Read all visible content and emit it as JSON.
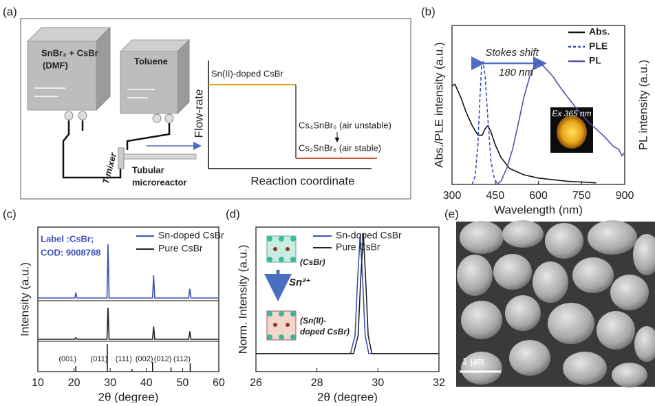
{
  "panel_labels": [
    "(a)",
    "(b)",
    "(c)",
    "(d)",
    "(e)"
  ],
  "diagram": {
    "reservoir_1": [
      "SnBr₂ + CsBr",
      "(DMF)"
    ],
    "reservoir_2": "Toluene",
    "mixer": "T-mixer",
    "reactor": [
      "Tubular",
      "microreactor"
    ],
    "y_axis": "Flow-rate",
    "x_axis": "Reaction coordinate",
    "stages": [
      "Sn(II)-doped CsBr",
      "Cs₄SnBr₆ (air unstable)",
      "Cs₂SnBr₆ (air stable)"
    ]
  },
  "chart_data": [
    {
      "type": "line",
      "xlabel": "Wavelength (nm)",
      "ylabel": "Abs./PLE intensity (a.u.)",
      "y2label": "PL intensity (a.u.)",
      "xlim": [
        300,
        900
      ],
      "xticks": [
        300,
        450,
        600,
        750,
        900
      ],
      "ylim": [
        0,
        1
      ],
      "y2lim": [
        0,
        1
      ],
      "legend": "upper right",
      "annotations": [
        "Stokes shift",
        "180 nm"
      ],
      "inset_label": "Ex 365 nm",
      "series": [
        {
          "name": "Abs.",
          "color": "#111111",
          "line_style": "solid",
          "x": [
            300,
            310,
            330,
            350,
            370,
            390,
            405,
            415,
            425,
            435,
            450,
            470,
            500,
            550,
            600,
            650,
            700,
            750,
            800
          ],
          "values": [
            0.62,
            0.63,
            0.55,
            0.45,
            0.37,
            0.31,
            0.31,
            0.35,
            0.37,
            0.33,
            0.25,
            0.17,
            0.1,
            0.06,
            0.04,
            0.03,
            0.02,
            0.015,
            0.01
          ]
        },
        {
          "name": "PLE",
          "color": "#3b4fb8",
          "line_style": "dashed",
          "x": [
            370,
            380,
            390,
            397,
            403,
            408,
            415,
            425,
            435,
            445,
            455,
            465
          ],
          "values": [
            0,
            0.05,
            0.25,
            0.55,
            0.75,
            0.77,
            0.68,
            0.4,
            0.15,
            0.05,
            0.01,
            0
          ]
        },
        {
          "name": "PL",
          "color": "#5a4aa8",
          "line_style": "solid",
          "axis": "y2",
          "x": [
            455,
            470,
            490,
            510,
            530,
            550,
            570,
            590,
            600,
            620,
            650,
            680,
            710,
            740,
            770,
            800,
            830,
            860,
            880,
            890,
            900
          ],
          "values": [
            0,
            0.02,
            0.1,
            0.22,
            0.38,
            0.55,
            0.68,
            0.76,
            0.77,
            0.74,
            0.68,
            0.6,
            0.53,
            0.46,
            0.4,
            0.35,
            0.3,
            0.24,
            0.22,
            0.18,
            0.2
          ]
        }
      ]
    },
    {
      "type": "line",
      "xlabel": "2θ (degree)",
      "ylabel": "Intensity (a.u.)",
      "xlim": [
        10,
        60
      ],
      "xticks": [
        10,
        20,
        30,
        40,
        50,
        60
      ],
      "ylim": [
        0,
        1
      ],
      "legend": "upper right",
      "annotations": [
        "Label :CsBr;",
        "COD: 9008788"
      ],
      "series": [
        {
          "name": "Sn-doped CsBr",
          "color": "#3b4fb8",
          "x": [
            10,
            20.2,
            20.5,
            20.8,
            29.1,
            29.4,
            29.7,
            41.7,
            42,
            42.3,
            51.7,
            52,
            52.3,
            60
          ],
          "values": [
            0,
            0,
            0.1,
            0,
            0,
            1,
            0,
            0,
            0.42,
            0,
            0,
            0.17,
            0,
            0
          ]
        },
        {
          "name": "Pure CsBr",
          "color": "#222222",
          "x": [
            10,
            20.2,
            20.5,
            20.8,
            29.1,
            29.4,
            29.7,
            41.7,
            42,
            42.3,
            51.7,
            52,
            52.3,
            60
          ],
          "values": [
            0,
            0,
            0.05,
            0,
            0,
            1,
            0,
            0,
            0.4,
            0,
            0,
            0.25,
            0,
            0
          ]
        }
      ],
      "reference": {
        "x": [
          20.5,
          29.2,
          36,
          41.7,
          46.8,
          52.1
        ],
        "values": [
          0.2,
          1,
          0.1,
          0.35,
          0.15,
          0.3
        ],
        "labels": [
          "(001)",
          "(011)",
          "(111)",
          "(002)",
          "(012)",
          "(112)"
        ]
      }
    },
    {
      "type": "line",
      "xlabel": "2θ (degree)",
      "ylabel": "Norm. Intensity (a.u.)",
      "xlim": [
        26,
        32
      ],
      "xticks": [
        26,
        28,
        30,
        32
      ],
      "ylim": [
        -0.15,
        1.05
      ],
      "legend": "upper right",
      "annotations": [
        "(CsBr)",
        "Sn²⁺",
        "(Sn(II)-",
        "doped CsBr)"
      ],
      "series": [
        {
          "name": "Sn-doped CsBr",
          "color": "#3b4fb8",
          "x": [
            26,
            29.1,
            29.25,
            29.33,
            29.42,
            29.5,
            29.58,
            29.7,
            32
          ],
          "values": [
            0,
            0,
            0.15,
            0.6,
            1,
            0.6,
            0.15,
            0,
            0
          ]
        },
        {
          "name": "Pure CsBr",
          "color": "#222222",
          "x": [
            26,
            29.2,
            29.35,
            29.43,
            29.52,
            29.6,
            29.68,
            29.8,
            32
          ],
          "values": [
            0,
            0,
            0.15,
            0.6,
            1,
            0.6,
            0.15,
            0,
            0
          ]
        }
      ]
    }
  ],
  "image": {
    "scale_bar": "1 μm"
  }
}
